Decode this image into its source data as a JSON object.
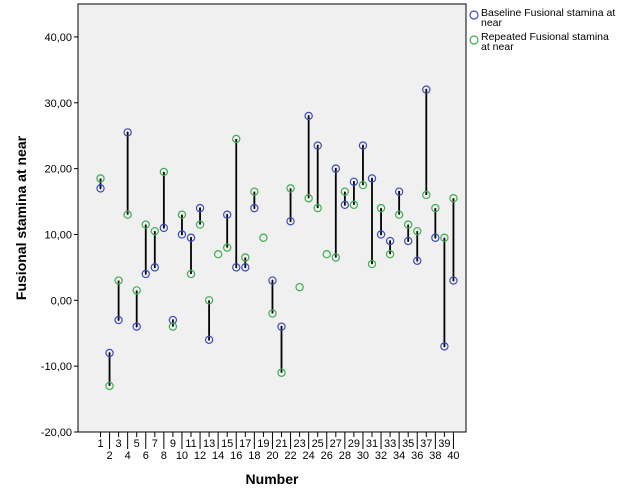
{
  "chart_data": {
    "type": "scatter",
    "xlabel": "Number",
    "ylabel": "Fusional stamina at near",
    "ylim": [
      -20,
      45
    ],
    "yticks": [
      -20,
      -10,
      0,
      10,
      20,
      30,
      40
    ],
    "ytick_labels": [
      "-20,00",
      "-10,00",
      "0,00",
      "10,00",
      "20,00",
      "30,00",
      "40,00"
    ],
    "x": [
      1,
      2,
      3,
      4,
      5,
      6,
      7,
      8,
      9,
      10,
      11,
      12,
      13,
      14,
      15,
      16,
      17,
      18,
      19,
      20,
      21,
      22,
      23,
      24,
      25,
      26,
      27,
      28,
      29,
      30,
      31,
      32,
      33,
      34,
      35,
      36,
      37,
      38,
      39,
      40
    ],
    "x_tick_labels": [
      "1",
      "2",
      "3",
      "4",
      "5",
      "6",
      "7",
      "8",
      "9",
      "10",
      "11",
      "12",
      "13",
      "14",
      "15",
      "16",
      "17",
      "18",
      "19",
      "20",
      "21",
      "22",
      "23",
      "24",
      "25",
      "26",
      "27",
      "28",
      "29",
      "30",
      "31",
      "32",
      "33",
      "34",
      "35",
      "36",
      "37",
      "38",
      "39",
      "40"
    ],
    "connector_lines": true,
    "legend_position": "top-right",
    "grid": false,
    "series": [
      {
        "name": "Baseline Fusional stamina at near",
        "color": "#3b4cb8",
        "values": [
          17,
          -8,
          -3,
          25.5,
          -4,
          4,
          5,
          11,
          -3,
          10,
          9.5,
          14,
          -6,
          null,
          13,
          5,
          5,
          14,
          null,
          3,
          -4,
          12,
          null,
          28,
          23.5,
          null,
          20,
          14.5,
          18,
          23.5,
          18.5,
          10,
          9,
          16.5,
          9,
          6,
          32,
          9.5,
          -7,
          3
        ]
      },
      {
        "name": "Repeated Fusional stamina at near",
        "color": "#3cae4c",
        "values": [
          18.5,
          -13,
          3,
          13,
          1.5,
          11.5,
          10.5,
          19.5,
          -4,
          13,
          4,
          11.5,
          0,
          7,
          8,
          24.5,
          6.5,
          16.5,
          9.5,
          -2,
          -11,
          17,
          2,
          15.5,
          14,
          7,
          6.5,
          16.5,
          14.5,
          17.5,
          5.5,
          14,
          7,
          13,
          11.5,
          10.5,
          16,
          14,
          9.5,
          15.5
        ]
      }
    ]
  }
}
